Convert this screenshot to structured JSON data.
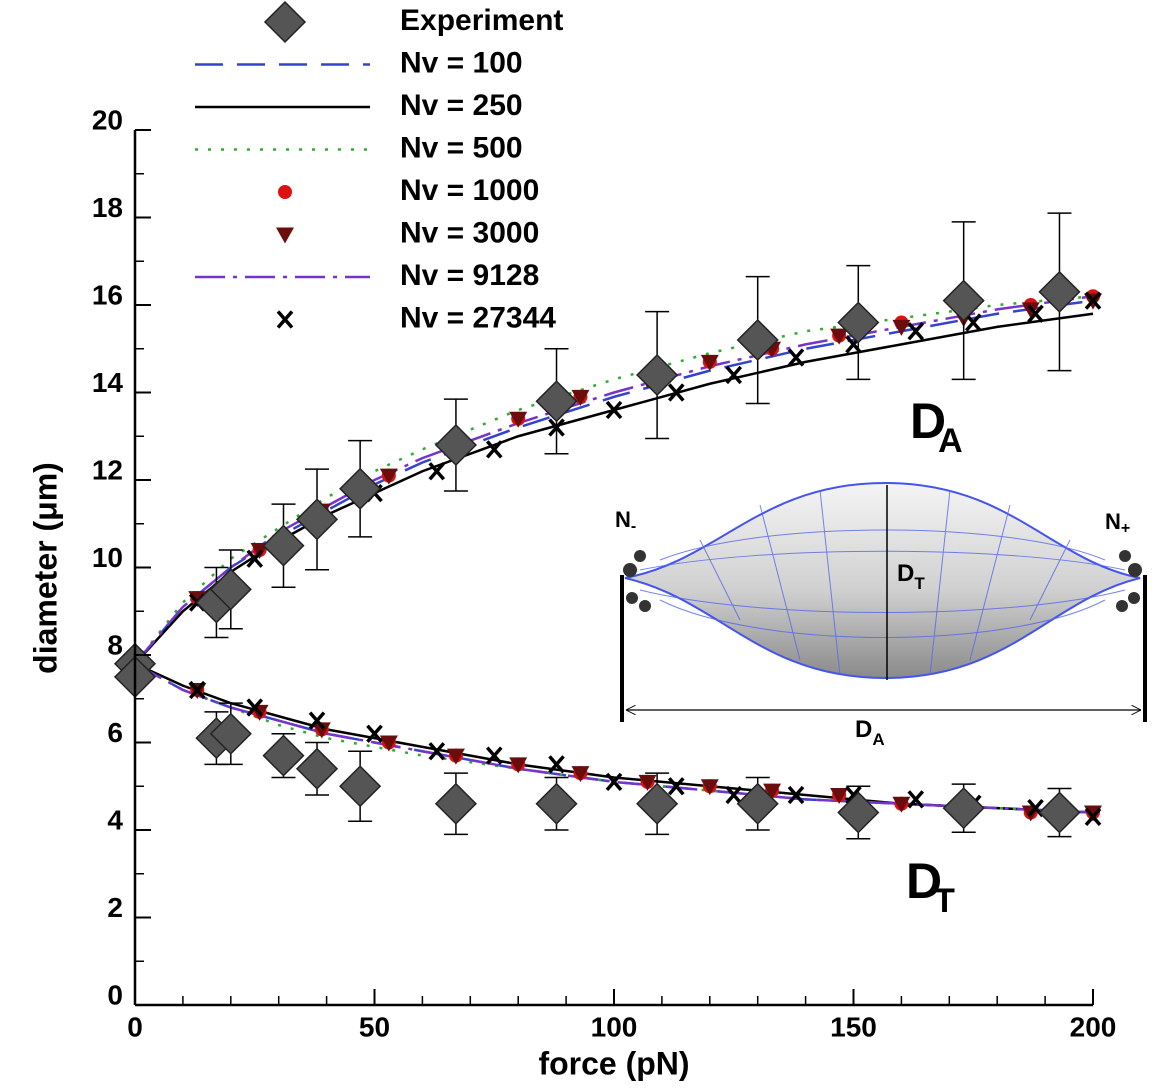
{
  "chart_data": {
    "type": "line",
    "x_label": "force (pN)",
    "y_label": "diameter (μm)",
    "xlim": [
      0,
      200
    ],
    "xticks": [
      0,
      50,
      100,
      150,
      200
    ],
    "xminorticks": [
      10,
      20,
      30,
      40,
      60,
      70,
      80,
      90,
      110,
      120,
      130,
      140,
      160,
      170,
      180,
      190
    ],
    "ylim": [
      0,
      20
    ],
    "yticks": [
      0,
      2,
      4,
      6,
      8,
      10,
      12,
      14,
      16,
      18,
      20
    ],
    "yminorticks": [
      1,
      3,
      5,
      7,
      9,
      11,
      13,
      15,
      17,
      19
    ],
    "legend": "top-left",
    "annotations": [
      {
        "text": "D",
        "sub": "A"
      },
      {
        "text": "D",
        "sub": "T"
      }
    ],
    "inset": {
      "left": {
        "text": "N",
        "sub": "-"
      },
      "right": {
        "text": "N",
        "sub": "+"
      },
      "height": {
        "text": "D",
        "sub": "T"
      },
      "width": {
        "text": "D",
        "sub": "A"
      }
    },
    "series": [
      {
        "name": "Experiment",
        "color": "#555555",
        "marker": "diamond",
        "branches": [
          {
            "x": [
              0,
              17,
              20,
              31,
              38,
              47,
              67,
              88,
              109,
              130,
              151,
              173,
              193
            ],
            "values": [
              7.8,
              9.2,
              9.5,
              10.5,
              11.1,
              11.8,
              12.8,
              13.8,
              14.4,
              15.2,
              15.6,
              16.1,
              16.3
            ],
            "errors": [
              0,
              0.8,
              0.9,
              0.95,
              1.15,
              1.1,
              1.05,
              1.2,
              1.45,
              1.45,
              1.3,
              1.8,
              1.8
            ]
          },
          {
            "x": [
              0,
              17,
              20,
              31,
              38,
              47,
              67,
              88,
              109,
              130,
              151,
              173,
              193
            ],
            "values": [
              7.5,
              6.1,
              6.2,
              5.7,
              5.4,
              5.0,
              4.6,
              4.6,
              4.6,
              4.6,
              4.4,
              4.5,
              4.4
            ],
            "errors": [
              0,
              0.6,
              0.7,
              0.5,
              0.6,
              0.8,
              0.7,
              0.6,
              0.7,
              0.6,
              0.6,
              0.55,
              0.55
            ]
          }
        ]
      },
      {
        "name": "Nv = 100",
        "color": "#3344cc",
        "dash": "28,14",
        "branches": [
          {
            "x": [
              0,
              10,
              20,
              30,
              40,
              50,
              60,
              80,
              100,
              120,
              140,
              160,
              180,
              200
            ],
            "values": [
              7.8,
              9.1,
              10.0,
              10.7,
              11.3,
              11.9,
              12.4,
              13.2,
              13.9,
              14.5,
              15.0,
              15.4,
              15.8,
              16.1
            ]
          },
          {
            "x": [
              0,
              10,
              20,
              30,
              40,
              50,
              60,
              80,
              100,
              120,
              140,
              160,
              180,
              200
            ],
            "values": [
              7.8,
              7.2,
              6.8,
              6.5,
              6.2,
              6.0,
              5.8,
              5.4,
              5.1,
              4.9,
              4.7,
              4.6,
              4.5,
              4.4
            ]
          }
        ]
      },
      {
        "name": "Nv = 250",
        "color": "#000000",
        "dash": "",
        "branches": [
          {
            "x": [
              0,
              10,
              20,
              30,
              40,
              50,
              60,
              80,
              100,
              120,
              140,
              160,
              180,
              200
            ],
            "values": [
              7.8,
              9.0,
              9.9,
              10.6,
              11.2,
              11.7,
              12.2,
              13.0,
              13.6,
              14.2,
              14.7,
              15.1,
              15.5,
              15.8
            ]
          },
          {
            "x": [
              0,
              10,
              20,
              30,
              40,
              50,
              60,
              80,
              100,
              120,
              140,
              160,
              180,
              200
            ],
            "values": [
              7.8,
              7.3,
              6.9,
              6.6,
              6.3,
              6.1,
              5.9,
              5.5,
              5.2,
              5.0,
              4.8,
              4.6,
              4.5,
              4.4
            ]
          }
        ]
      },
      {
        "name": "Nv = 500",
        "color": "#33aa33",
        "dash": "3,10",
        "branches": [
          {
            "x": [
              0,
              10,
              20,
              30,
              40,
              50,
              60,
              80,
              100,
              120,
              140,
              160,
              180,
              200
            ],
            "values": [
              7.8,
              9.2,
              10.2,
              10.9,
              11.6,
              12.2,
              12.7,
              13.6,
              14.3,
              14.9,
              15.4,
              15.7,
              16.0,
              16.2
            ]
          },
          {
            "x": [
              0,
              10,
              20,
              30,
              40,
              50,
              60,
              80,
              100,
              120,
              140,
              160,
              180,
              200
            ],
            "values": [
              7.8,
              7.2,
              6.8,
              6.4,
              6.1,
              5.9,
              5.7,
              5.4,
              5.1,
              4.9,
              4.7,
              4.6,
              4.5,
              4.4
            ]
          }
        ]
      },
      {
        "name": "Nv = 1000",
        "color": "#dd1111",
        "marker": "circle",
        "branches": [
          {
            "x": [
              13,
              26,
              39,
              53,
              67,
              80,
              93,
              107,
              120,
              133,
              147,
              160,
              173,
              187,
              200
            ],
            "values": [
              9.3,
              10.4,
              11.3,
              12.1,
              12.8,
              13.4,
              13.9,
              14.4,
              14.7,
              15.0,
              15.3,
              15.6,
              15.8,
              16.0,
              16.2
            ]
          },
          {
            "x": [
              13,
              26,
              39,
              53,
              67,
              80,
              93,
              107,
              120,
              133,
              147,
              160,
              173,
              187,
              200
            ],
            "values": [
              7.2,
              6.7,
              6.3,
              6.0,
              5.7,
              5.5,
              5.3,
              5.1,
              5.0,
              4.9,
              4.8,
              4.6,
              4.5,
              4.4,
              4.4
            ]
          }
        ]
      },
      {
        "name": "Nv = 3000",
        "color": "#6b0d0d",
        "marker": "triangle",
        "branches": [
          {
            "x": [
              13,
              26,
              39,
              53,
              67,
              80,
              93,
              107,
              120,
              133,
              147,
              160,
              173,
              187,
              200
            ],
            "values": [
              9.3,
              10.4,
              11.3,
              12.1,
              12.8,
              13.4,
              13.9,
              14.3,
              14.7,
              15.0,
              15.3,
              15.5,
              15.7,
              15.9,
              16.1
            ]
          },
          {
            "x": [
              13,
              26,
              39,
              53,
              67,
              80,
              93,
              107,
              120,
              133,
              147,
              160,
              173,
              187,
              200
            ],
            "values": [
              7.2,
              6.7,
              6.3,
              6.0,
              5.7,
              5.5,
              5.3,
              5.1,
              5.0,
              4.9,
              4.8,
              4.6,
              4.5,
              4.4,
              4.4
            ]
          }
        ]
      },
      {
        "name": "Nv = 9128",
        "color": "#7733cc",
        "dash": "30,8,4,8",
        "branches": [
          {
            "x": [
              0,
              10,
              20,
              30,
              40,
              50,
              60,
              80,
              100,
              120,
              140,
              160,
              180,
              200
            ],
            "values": [
              7.8,
              9.1,
              10.0,
              10.8,
              11.4,
              12.0,
              12.5,
              13.3,
              14.0,
              14.6,
              15.1,
              15.5,
              15.9,
              16.2
            ]
          },
          {
            "x": [
              0,
              10,
              20,
              30,
              40,
              50,
              60,
              80,
              100,
              120,
              140,
              160,
              180,
              200
            ],
            "values": [
              7.8,
              7.2,
              6.8,
              6.5,
              6.2,
              6.0,
              5.8,
              5.4,
              5.1,
              4.9,
              4.7,
              4.6,
              4.5,
              4.4
            ]
          }
        ]
      },
      {
        "name": "Nv = 27344",
        "color": "#000000",
        "marker": "x",
        "branches": [
          {
            "x": [
              0,
              13,
              25,
              38,
              50,
              63,
              75,
              88,
              100,
              113,
              125,
              138,
              150,
              163,
              175,
              188,
              200
            ],
            "values": [
              7.8,
              9.2,
              10.2,
              11.0,
              11.7,
              12.2,
              12.7,
              13.2,
              13.6,
              14.0,
              14.4,
              14.8,
              15.1,
              15.4,
              15.6,
              15.8,
              16.1
            ]
          },
          {
            "x": [
              0,
              13,
              25,
              38,
              50,
              63,
              75,
              88,
              100,
              113,
              125,
              138,
              150,
              163,
              175,
              188,
              200
            ],
            "values": [
              7.8,
              7.2,
              6.8,
              6.5,
              6.2,
              5.8,
              5.7,
              5.5,
              5.1,
              5.0,
              4.8,
              4.8,
              4.8,
              4.7,
              4.6,
              4.5,
              4.3
            ]
          }
        ]
      }
    ]
  }
}
